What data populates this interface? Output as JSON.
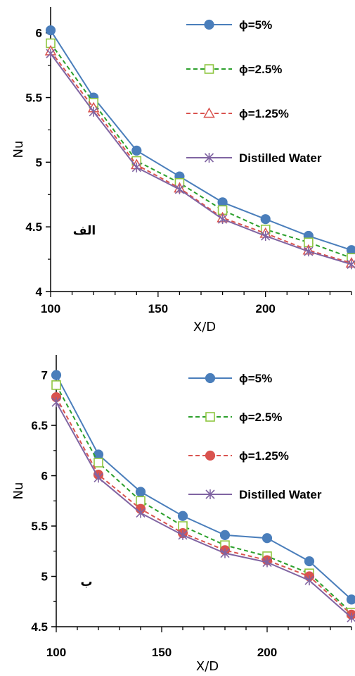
{
  "chart_data": [
    {
      "type": "line",
      "ylabel": "Nu",
      "xlabel": "X/D",
      "annotation": "الف",
      "xlim": [
        100,
        240
      ],
      "ylim": [
        4,
        6.2
      ],
      "xticks": [
        "100",
        "150",
        "200"
      ],
      "yticks": [
        "4",
        "4.5",
        "5",
        "5.5",
        "6"
      ],
      "legend_position": "top-right",
      "x": [
        100,
        120,
        140,
        160,
        180,
        200,
        220,
        240
      ],
      "series": [
        {
          "name": "ϕ=5%",
          "values": [
            6.02,
            5.5,
            5.09,
            4.89,
            4.69,
            4.56,
            4.43,
            4.32
          ],
          "color": "#4a7ebb",
          "dash": "solid",
          "marker": "filled-circle"
        },
        {
          "name": "ϕ=2.5%",
          "values": [
            5.92,
            5.46,
            5.01,
            4.84,
            4.63,
            4.48,
            4.38,
            4.26
          ],
          "color": "#2ca02c",
          "dash": "dashed",
          "marker": "open-square",
          "marker_color": "#8fc641"
        },
        {
          "name": "ϕ=1.25%",
          "values": [
            5.86,
            5.42,
            4.98,
            4.8,
            4.57,
            4.45,
            4.32,
            4.22
          ],
          "color": "#d9534f",
          "dash": "dashed",
          "marker": "open-triangle"
        },
        {
          "name": "Distilled Water",
          "values": [
            5.84,
            5.39,
            4.96,
            4.79,
            4.56,
            4.43,
            4.31,
            4.21
          ],
          "color": "#8064a2",
          "dash": "solid",
          "marker": "star"
        }
      ]
    },
    {
      "type": "line",
      "ylabel": "Nu",
      "xlabel": "X/D",
      "annotation": "ب",
      "xlim": [
        100,
        240
      ],
      "ylim": [
        4.5,
        7.2
      ],
      "xticks": [
        "100",
        "150",
        "200"
      ],
      "yticks": [
        "4.5",
        "5",
        "5.5",
        "6",
        "6.5",
        "7"
      ],
      "legend_position": "top-right",
      "x": [
        100,
        120,
        140,
        160,
        180,
        200,
        220,
        240
      ],
      "series": [
        {
          "name": "ϕ=5%",
          "values": [
            7.0,
            6.21,
            5.84,
            5.6,
            5.41,
            5.38,
            5.15,
            4.77
          ],
          "color": "#4a7ebb",
          "dash": "solid",
          "marker": "filled-circle"
        },
        {
          "name": "ϕ=2.5%",
          "values": [
            6.9,
            6.13,
            5.75,
            5.5,
            5.31,
            5.2,
            5.03,
            4.64
          ],
          "color": "#2ca02c",
          "dash": "dashed",
          "marker": "open-square",
          "marker_color": "#8fc641"
        },
        {
          "name": "ϕ=1.25%",
          "values": [
            6.78,
            6.01,
            5.67,
            5.43,
            5.26,
            5.16,
            5.0,
            4.62
          ],
          "color": "#d9534f",
          "dash": "dashed",
          "marker": "filled-circle"
        },
        {
          "name": "Distilled Water",
          "values": [
            6.73,
            5.98,
            5.63,
            5.41,
            5.23,
            5.14,
            4.96,
            4.59
          ],
          "color": "#8064a2",
          "dash": "solid",
          "marker": "star"
        }
      ]
    }
  ]
}
